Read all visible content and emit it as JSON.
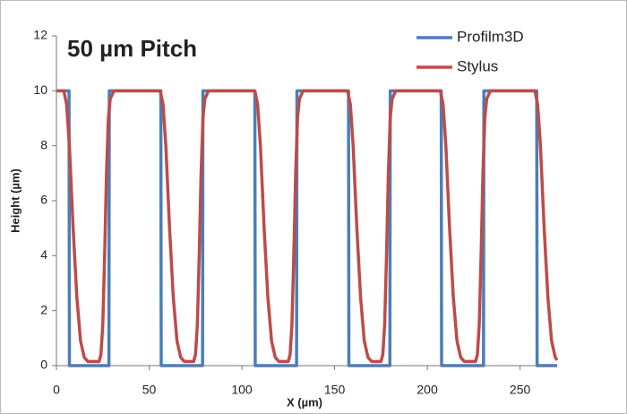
{
  "chart_data": {
    "type": "line",
    "title": "50 µm Pitch",
    "xlabel": "X (µm)",
    "ylabel": "Height  (µm)",
    "xlim": [
      0,
      270
    ],
    "ylim": [
      0,
      12
    ],
    "xticks": [
      0,
      50,
      100,
      150,
      200,
      250
    ],
    "yticks": [
      0,
      2,
      4,
      6,
      8,
      10,
      12
    ],
    "legend": "upper right",
    "series": [
      {
        "name": "Profilm3D",
        "color": "#4a7ebb",
        "x": [
          0,
          6.8,
          7,
          28.3,
          28.5,
          56.3,
          56.5,
          78.8,
          79,
          107,
          107.2,
          129.5,
          129.7,
          157.5,
          157.7,
          179.8,
          180,
          207.5,
          207.7,
          230.3,
          230.5,
          259,
          259.2,
          270
        ],
        "values": [
          10,
          10,
          0,
          0,
          10,
          10,
          0,
          0,
          10,
          10,
          0,
          0,
          10,
          10,
          0,
          0,
          10,
          10,
          0,
          0,
          10,
          10,
          0,
          0
        ]
      },
      {
        "name": "Stylus",
        "color": "#be4b48",
        "x": [
          0,
          4,
          5.5,
          7,
          9,
          11,
          13,
          15,
          17,
          23,
          24,
          25,
          26,
          27,
          28,
          29,
          31,
          56,
          57.5,
          59,
          61,
          63,
          65,
          67,
          69,
          74,
          75,
          76,
          77,
          78,
          79,
          80,
          82,
          107,
          108.5,
          110,
          112,
          114,
          116,
          118,
          120,
          125,
          126,
          127,
          128,
          129,
          130,
          131,
          133,
          157,
          158.5,
          160,
          162,
          164,
          166,
          168,
          170,
          175,
          176,
          177,
          178,
          179,
          180,
          181,
          183,
          207,
          208.5,
          210,
          212,
          214,
          216,
          218,
          220,
          226,
          227,
          228,
          229,
          230,
          231,
          232,
          234,
          258,
          259.5,
          261,
          263,
          265,
          267,
          269,
          270
        ],
        "values": [
          10,
          10,
          9.5,
          8,
          5,
          2.5,
          0.9,
          0.3,
          0.15,
          0.15,
          0.4,
          1.5,
          4,
          7,
          9,
          9.7,
          10,
          10,
          9.5,
          8,
          5,
          2.5,
          0.9,
          0.3,
          0.15,
          0.15,
          0.4,
          1.5,
          4,
          7,
          9,
          9.7,
          10,
          10,
          9.5,
          8,
          5,
          2.5,
          0.9,
          0.3,
          0.15,
          0.15,
          0.4,
          1.5,
          4,
          7,
          9,
          9.7,
          10,
          10,
          9.5,
          8,
          5,
          2.5,
          0.9,
          0.3,
          0.15,
          0.15,
          0.4,
          1.5,
          4,
          7,
          9,
          9.7,
          10,
          10,
          9.5,
          8,
          5,
          2.5,
          0.9,
          0.3,
          0.15,
          0.15,
          0.4,
          1.5,
          4,
          7,
          9,
          9.7,
          10,
          10,
          9.5,
          8,
          5,
          2.5,
          0.9,
          0.3,
          0.2
        ]
      }
    ]
  }
}
